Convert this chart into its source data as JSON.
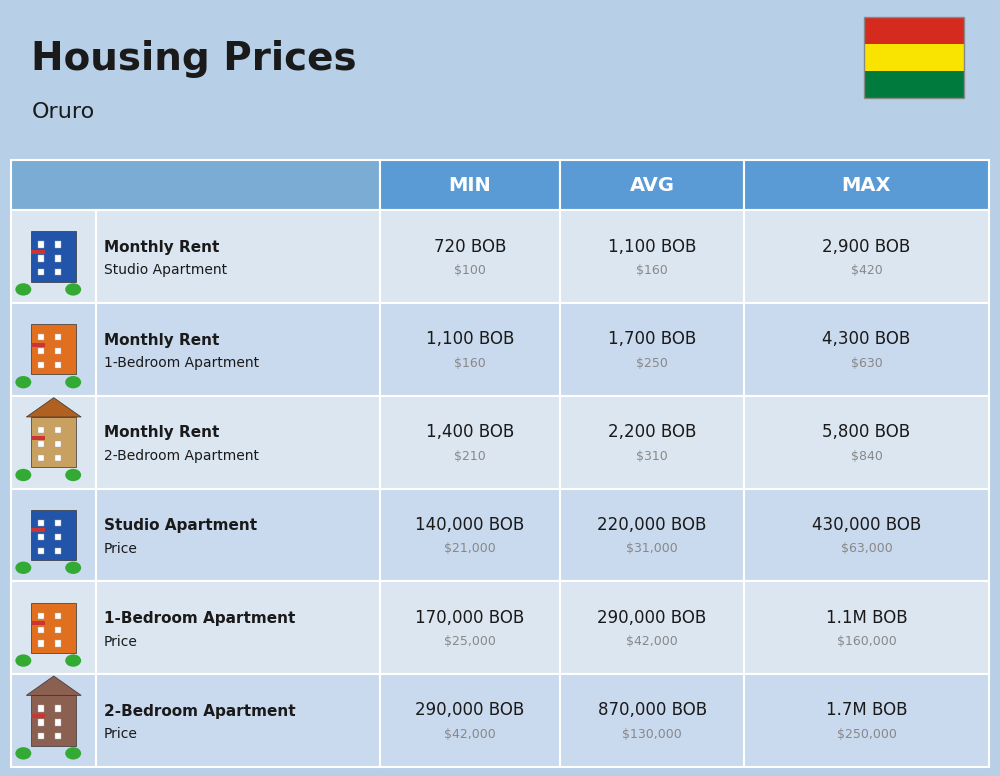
{
  "title": "Housing Prices",
  "subtitle": "Oruro",
  "bg_color": "#b8cfe8",
  "header_color": "#5b9bd5",
  "header_text_color": "#ffffff",
  "row_colors": [
    "#dce6f1",
    "#c9d9ee"
  ],
  "col_headers": [
    "MIN",
    "AVG",
    "MAX"
  ],
  "rows": [
    {
      "icon_type": "studio_blue",
      "label_bold": "Monthly Rent",
      "label_sub": "Studio Apartment",
      "min_bob": "720 BOB",
      "min_usd": "$100",
      "avg_bob": "1,100 BOB",
      "avg_usd": "$160",
      "max_bob": "2,900 BOB",
      "max_usd": "$420"
    },
    {
      "icon_type": "apartment_orange",
      "label_bold": "Monthly Rent",
      "label_sub": "1-Bedroom Apartment",
      "min_bob": "1,100 BOB",
      "min_usd": "$160",
      "avg_bob": "1,700 BOB",
      "avg_usd": "$250",
      "max_bob": "4,300 BOB",
      "max_usd": "$630"
    },
    {
      "icon_type": "apartment_beige",
      "label_bold": "Monthly Rent",
      "label_sub": "2-Bedroom Apartment",
      "min_bob": "1,400 BOB",
      "min_usd": "$210",
      "avg_bob": "2,200 BOB",
      "avg_usd": "$310",
      "max_bob": "5,800 BOB",
      "max_usd": "$840"
    },
    {
      "icon_type": "studio_blue2",
      "label_bold": "Studio Apartment",
      "label_sub": "Price",
      "min_bob": "140,000 BOB",
      "min_usd": "$21,000",
      "avg_bob": "220,000 BOB",
      "avg_usd": "$31,000",
      "max_bob": "430,000 BOB",
      "max_usd": "$63,000"
    },
    {
      "icon_type": "apartment_orange2",
      "label_bold": "1-Bedroom Apartment",
      "label_sub": "Price",
      "min_bob": "170,000 BOB",
      "min_usd": "$25,000",
      "avg_bob": "290,000 BOB",
      "avg_usd": "$42,000",
      "max_bob": "1.1M BOB",
      "max_usd": "$160,000"
    },
    {
      "icon_type": "apartment_brown",
      "label_bold": "2-Bedroom Apartment",
      "label_sub": "Price",
      "min_bob": "290,000 BOB",
      "min_usd": "$42,000",
      "avg_bob": "870,000 BOB",
      "avg_usd": "$130,000",
      "max_bob": "1.7M BOB",
      "max_usd": "$250,000"
    }
  ]
}
